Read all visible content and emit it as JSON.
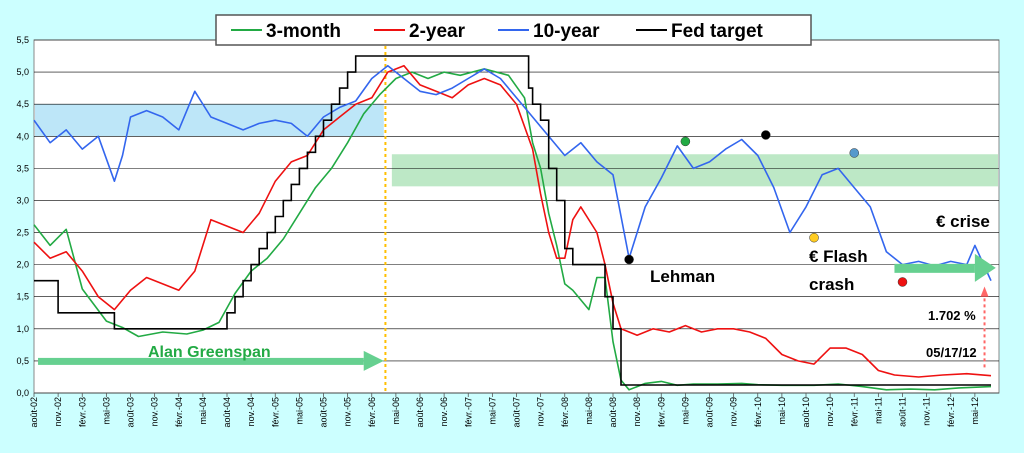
{
  "chart_data": {
    "type": "line",
    "legend": {
      "placement": "top-center"
    },
    "series": [
      {
        "name": "3-month",
        "color": "#22aa44"
      },
      {
        "name": "2-year",
        "color": "#ee1111"
      },
      {
        "name": "10-year",
        "color": "#3366ee"
      },
      {
        "name": "Fed target",
        "color": "#000000"
      }
    ],
    "ylim": [
      0,
      5.5
    ],
    "y_ticks": [
      "0,0",
      "0,5",
      "1,0",
      "1,5",
      "2,0",
      "2,5",
      "3,0",
      "3,5",
      "4,0",
      "4,5",
      "5,0",
      "5,5"
    ],
    "x_ticks": [
      "août-02",
      "nov.-02",
      "févr.-03",
      "mai-03",
      "août-03",
      "nov.-03",
      "févr.-04",
      "mai-04",
      "août-04",
      "nov.-04",
      "févr.-05",
      "mai-05",
      "août-05",
      "nov.-05",
      "févr.-06",
      "mai-06",
      "août-06",
      "nov.-06",
      "févr.-07",
      "mai-07",
      "août-07",
      "nov.-07",
      "févr.-08",
      "mai-08",
      "août-08",
      "nov.-08",
      "févr.-09",
      "mai-09",
      "août-09",
      "nov.-09",
      "févr.-10",
      "mai-10",
      "août-10",
      "nov.-10",
      "févr.-11",
      "mai-11",
      "août-11",
      "nov.-11",
      "févr.-12",
      "mai-12"
    ],
    "grid": true,
    "data": {
      "fed_target": [
        [
          0,
          1.75
        ],
        [
          3,
          1.25
        ],
        [
          10,
          1.0
        ],
        [
          22,
          1.0
        ],
        [
          24,
          1.25
        ],
        [
          25,
          1.5
        ],
        [
          26,
          1.75
        ],
        [
          27,
          2.0
        ],
        [
          28,
          2.25
        ],
        [
          29,
          2.5
        ],
        [
          30,
          2.75
        ],
        [
          31,
          3.0
        ],
        [
          32,
          3.25
        ],
        [
          33,
          3.5
        ],
        [
          34,
          3.75
        ],
        [
          35,
          4.0
        ],
        [
          36,
          4.25
        ],
        [
          37,
          4.5
        ],
        [
          38,
          4.75
        ],
        [
          39,
          5.0
        ],
        [
          40,
          5.25
        ],
        [
          61,
          5.25
        ],
        [
          61.5,
          4.75
        ],
        [
          62,
          4.5
        ],
        [
          63,
          4.25
        ],
        [
          64,
          3.5
        ],
        [
          65,
          3.0
        ],
        [
          66,
          2.25
        ],
        [
          67,
          2.0
        ],
        [
          71,
          1.5
        ],
        [
          72,
          1.0
        ],
        [
          73,
          0.125
        ],
        [
          119,
          0.125
        ]
      ],
      "m3": [
        [
          0,
          2.62
        ],
        [
          2,
          2.3
        ],
        [
          4,
          2.55
        ],
        [
          6,
          1.62
        ],
        [
          9,
          1.12
        ],
        [
          11,
          1.02
        ],
        [
          13,
          0.88
        ],
        [
          16,
          0.95
        ],
        [
          19,
          0.92
        ],
        [
          21,
          0.98
        ],
        [
          23,
          1.1
        ],
        [
          25,
          1.55
        ],
        [
          27,
          1.9
        ],
        [
          29,
          2.1
        ],
        [
          31,
          2.4
        ],
        [
          33,
          2.8
        ],
        [
          35,
          3.2
        ],
        [
          37,
          3.5
        ],
        [
          39,
          3.9
        ],
        [
          41,
          4.35
        ],
        [
          43,
          4.65
        ],
        [
          45,
          4.9
        ],
        [
          47,
          5.0
        ],
        [
          49,
          4.9
        ],
        [
          51,
          5.0
        ],
        [
          53,
          4.95
        ],
        [
          56,
          5.05
        ],
        [
          59,
          4.95
        ],
        [
          61,
          4.6
        ],
        [
          62,
          3.9
        ],
        [
          63,
          3.5
        ],
        [
          64,
          2.8
        ],
        [
          65,
          2.3
        ],
        [
          66,
          1.7
        ],
        [
          67,
          1.6
        ],
        [
          69,
          1.3
        ],
        [
          70,
          1.8
        ],
        [
          71,
          1.8
        ],
        [
          72,
          0.8
        ],
        [
          73,
          0.2
        ],
        [
          74,
          0.05
        ],
        [
          76,
          0.15
        ],
        [
          78,
          0.18
        ],
        [
          80,
          0.12
        ],
        [
          82,
          0.14
        ],
        [
          85,
          0.14
        ],
        [
          88,
          0.15
        ],
        [
          90,
          0.13
        ],
        [
          93,
          0.12
        ],
        [
          97,
          0.12
        ],
        [
          100,
          0.14
        ],
        [
          103,
          0.1
        ],
        [
          106,
          0.05
        ],
        [
          109,
          0.06
        ],
        [
          112,
          0.05
        ],
        [
          115,
          0.08
        ],
        [
          119,
          0.1
        ]
      ],
      "y2": [
        [
          0,
          2.35
        ],
        [
          2,
          2.1
        ],
        [
          4,
          2.2
        ],
        [
          6,
          1.9
        ],
        [
          8,
          1.5
        ],
        [
          10,
          1.3
        ],
        [
          12,
          1.6
        ],
        [
          14,
          1.8
        ],
        [
          16,
          1.7
        ],
        [
          18,
          1.6
        ],
        [
          20,
          1.9
        ],
        [
          22,
          2.7
        ],
        [
          24,
          2.6
        ],
        [
          26,
          2.5
        ],
        [
          28,
          2.8
        ],
        [
          30,
          3.3
        ],
        [
          32,
          3.6
        ],
        [
          34,
          3.7
        ],
        [
          36,
          4.1
        ],
        [
          38,
          4.3
        ],
        [
          40,
          4.5
        ],
        [
          42,
          4.6
        ],
        [
          44,
          5.0
        ],
        [
          46,
          5.1
        ],
        [
          48,
          4.8
        ],
        [
          50,
          4.7
        ],
        [
          52,
          4.6
        ],
        [
          54,
          4.8
        ],
        [
          56,
          4.9
        ],
        [
          58,
          4.8
        ],
        [
          60,
          4.5
        ],
        [
          62,
          3.8
        ],
        [
          63,
          3.1
        ],
        [
          64,
          2.5
        ],
        [
          65,
          2.1
        ],
        [
          66,
          2.1
        ],
        [
          67,
          2.7
        ],
        [
          68,
          2.9
        ],
        [
          70,
          2.5
        ],
        [
          71,
          2.0
        ],
        [
          72,
          1.4
        ],
        [
          73,
          1.0
        ],
        [
          75,
          0.9
        ],
        [
          77,
          1.0
        ],
        [
          79,
          0.95
        ],
        [
          81,
          1.05
        ],
        [
          83,
          0.95
        ],
        [
          85,
          1.0
        ],
        [
          87,
          1.0
        ],
        [
          89,
          0.95
        ],
        [
          91,
          0.85
        ],
        [
          93,
          0.6
        ],
        [
          95,
          0.5
        ],
        [
          97,
          0.45
        ],
        [
          99,
          0.7
        ],
        [
          101,
          0.7
        ],
        [
          103,
          0.6
        ],
        [
          105,
          0.35
        ],
        [
          107,
          0.28
        ],
        [
          110,
          0.25
        ],
        [
          113,
          0.28
        ],
        [
          116,
          0.3
        ],
        [
          119,
          0.27
        ]
      ],
      "y10": [
        [
          0,
          4.25
        ],
        [
          2,
          3.9
        ],
        [
          4,
          4.1
        ],
        [
          6,
          3.8
        ],
        [
          8,
          4.0
        ],
        [
          10,
          3.3
        ],
        [
          11,
          3.7
        ],
        [
          12,
          4.3
        ],
        [
          14,
          4.4
        ],
        [
          16,
          4.3
        ],
        [
          18,
          4.1
        ],
        [
          20,
          4.7
        ],
        [
          22,
          4.3
        ],
        [
          24,
          4.2
        ],
        [
          26,
          4.1
        ],
        [
          28,
          4.2
        ],
        [
          30,
          4.25
        ],
        [
          32,
          4.2
        ],
        [
          34,
          4.0
        ],
        [
          36,
          4.3
        ],
        [
          38,
          4.45
        ],
        [
          40,
          4.55
        ],
        [
          42,
          4.9
        ],
        [
          44,
          5.1
        ],
        [
          46,
          4.9
        ],
        [
          48,
          4.7
        ],
        [
          50,
          4.65
        ],
        [
          52,
          4.75
        ],
        [
          54,
          4.9
        ],
        [
          56,
          5.05
        ],
        [
          58,
          4.9
        ],
        [
          60,
          4.6
        ],
        [
          62,
          4.3
        ],
        [
          64,
          4.0
        ],
        [
          66,
          3.7
        ],
        [
          68,
          3.9
        ],
        [
          70,
          3.6
        ],
        [
          72,
          3.4
        ],
        [
          74,
          2.1
        ],
        [
          76,
          2.9
        ],
        [
          78,
          3.35
        ],
        [
          80,
          3.85
        ],
        [
          82,
          3.5
        ],
        [
          84,
          3.6
        ],
        [
          86,
          3.8
        ],
        [
          88,
          3.95
        ],
        [
          90,
          3.7
        ],
        [
          92,
          3.2
        ],
        [
          94,
          2.5
        ],
        [
          96,
          2.9
        ],
        [
          98,
          3.4
        ],
        [
          100,
          3.5
        ],
        [
          102,
          3.2
        ],
        [
          104,
          2.9
        ],
        [
          106,
          2.2
        ],
        [
          108,
          2.0
        ],
        [
          110,
          2.05
        ],
        [
          112,
          1.98
        ],
        [
          114,
          2.05
        ],
        [
          116,
          2.0
        ],
        [
          117,
          2.3
        ],
        [
          119,
          1.75
        ]
      ]
    },
    "dots": [
      {
        "x": 74,
        "y": 2.08,
        "color": "#000000"
      },
      {
        "x": 81,
        "y": 3.92,
        "color": "#22aa44"
      },
      {
        "x": 91,
        "y": 4.02,
        "color": "#000000"
      },
      {
        "x": 97,
        "y": 2.42,
        "color": "#ffcc22"
      },
      {
        "x": 102,
        "y": 3.74,
        "color": "#5599cc"
      },
      {
        "x": 108,
        "y": 1.73,
        "color": "#ee1111"
      }
    ],
    "annotations": {
      "greenspan": "Alan Greenspan",
      "lehman": "Lehman",
      "flash1": "€ Flash",
      "flash2": "crash",
      "crise": "€ crise",
      "pct": "1.702 %",
      "date": "05/17/12"
    },
    "colors": {
      "background": "#ccffff",
      "plot_area": "#ffffff",
      "band_blue": "#bde6f8",
      "band_green": "#bde8c6",
      "arrow_green": "#66d090",
      "vline": "#ffbf00"
    }
  }
}
